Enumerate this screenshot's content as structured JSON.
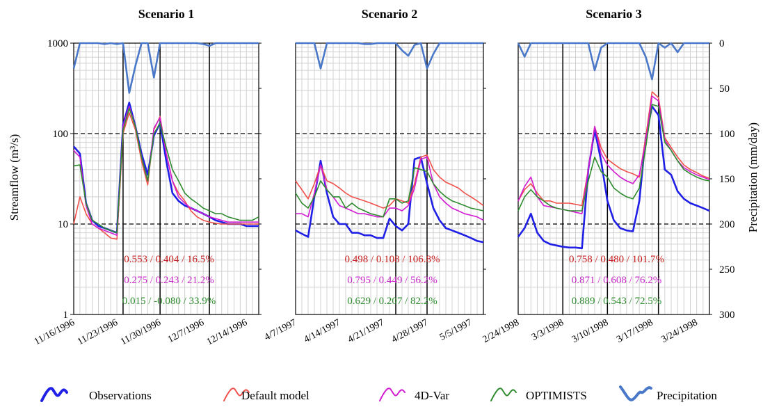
{
  "y_left_label": "Streamflow (m³/s)",
  "y_right_label": "Precipitation (mm/day)",
  "y_left_ticks": [
    "1",
    "10",
    "100",
    "1000"
  ],
  "y_right_ticks": [
    "0",
    "50",
    "100",
    "150",
    "200",
    "250",
    "300"
  ],
  "legend": [
    {
      "label": "Observations",
      "color": "#1f1fe6"
    },
    {
      "label": "Default model",
      "color": "#f0504a"
    },
    {
      "label": "4D-Var",
      "color": "#d21ad2"
    },
    {
      "label": "OPTIMISTS",
      "color": "#2e8b2e"
    },
    {
      "label": "Precipitation",
      "color": "#4a78c8"
    }
  ],
  "colors": {
    "observations": "#1f1fe6",
    "default": "#f0504a",
    "var4d": "#d21ad2",
    "optimists": "#2e8b2e",
    "precipitation": "#4a78c8",
    "grid": "#d0d0d0"
  },
  "chart_data": [
    {
      "type": "line",
      "title": "Scenario 1",
      "y_scale": "log",
      "ylim": [
        1,
        1000
      ],
      "y2lim": [
        0,
        300
      ],
      "y2_inverted": true,
      "x_dates": [
        "11/16/1996",
        "11/17/1996",
        "11/18/1996",
        "11/19/1996",
        "11/20/1996",
        "11/21/1996",
        "11/22/1996",
        "11/23/1996",
        "11/24/1996",
        "11/25/1996",
        "11/26/1996",
        "11/27/1996",
        "11/28/1996",
        "11/29/1996",
        "11/30/1996",
        "12/1/1996",
        "12/2/1996",
        "12/3/1996",
        "12/4/1996",
        "12/5/1996",
        "12/6/1996",
        "12/7/1996",
        "12/8/1996",
        "12/9/1996",
        "12/10/1996",
        "12/11/1996",
        "12/12/1996",
        "12/13/1996",
        "12/14/1996",
        "12/15/1996",
        "12/16/1996"
      ],
      "x_tick_labels": [
        "11/16/1996",
        "11/23/1996",
        "11/30/1996",
        "12/7/1996",
        "12/14/1996"
      ],
      "x_tick_dates": [
        "11/16/1996",
        "11/23/1996",
        "11/30/1996",
        "12/7/1996",
        "12/14/1996"
      ],
      "assimilation_dates": [
        "11/24/1996",
        "11/30/1996",
        "12/8/1996"
      ],
      "series": [
        {
          "key": "observations",
          "values": [
            72,
            60,
            17,
            11,
            9.5,
            9,
            8.5,
            8,
            125,
            220,
            120,
            60,
            35,
            95,
            130,
            50,
            22,
            18,
            16,
            15,
            14,
            13,
            12,
            11,
            10.5,
            10,
            10,
            10,
            9.5,
            9.5,
            9.5
          ]
        },
        {
          "key": "default",
          "values": [
            10,
            20,
            13,
            10,
            9,
            8,
            7,
            6.8,
            100,
            170,
            110,
            50,
            27,
            110,
            155,
            60,
            30,
            22,
            18,
            14,
            12,
            11,
            10.5,
            10.2,
            10,
            10,
            10,
            10,
            10,
            10,
            10
          ]
        },
        {
          "key": "var4d",
          "values": [
            65,
            55,
            16,
            10,
            9,
            8.5,
            8,
            7.5,
            120,
            200,
            120,
            55,
            30,
            115,
            150,
            60,
            30,
            20,
            17,
            15,
            14,
            13,
            12,
            11.5,
            11,
            10.5,
            10.5,
            10.5,
            10.5,
            10.5,
            10.5
          ]
        },
        {
          "key": "optimists",
          "values": [
            44,
            45,
            17,
            11,
            10,
            9,
            8.5,
            8,
            110,
            190,
            120,
            55,
            30,
            100,
            130,
            70,
            40,
            30,
            22,
            19,
            17,
            15,
            14,
            13,
            13,
            12,
            11.5,
            11,
            11,
            11,
            12
          ]
        },
        {
          "key": "precipitation",
          "axis": "right",
          "values": [
            28,
            0,
            0,
            0,
            0,
            1,
            0,
            1,
            0,
            55,
            25,
            0,
            0,
            38,
            0,
            0,
            0,
            0,
            0,
            0,
            0,
            1,
            3,
            0,
            0,
            0,
            0,
            0,
            0,
            0,
            0
          ]
        }
      ],
      "metrics": [
        {
          "text": "0.553 / 0.404 / 16.5%",
          "color": "#c81e1e"
        },
        {
          "text": "0.275 / 0.243 / 21.2%",
          "color": "#c828c8"
        },
        {
          "text": "0.015 / -0.080 / 33.9%",
          "color": "#2e8b2e"
        }
      ]
    },
    {
      "type": "line",
      "title": "Scenario 2",
      "y_scale": "log",
      "ylim": [
        1,
        1000
      ],
      "y2lim": [
        0,
        300
      ],
      "y2_inverted": true,
      "x_dates": [
        "4/7/1997",
        "4/8/1997",
        "4/9/1997",
        "4/10/1997",
        "4/11/1997",
        "4/12/1997",
        "4/13/1997",
        "4/14/1997",
        "4/15/1997",
        "4/16/1997",
        "4/17/1997",
        "4/18/1997",
        "4/19/1997",
        "4/20/1997",
        "4/21/1997",
        "4/22/1997",
        "4/23/1997",
        "4/24/1997",
        "4/25/1997",
        "4/26/1997",
        "4/27/1997",
        "4/28/1997",
        "4/29/1997",
        "4/30/1997",
        "5/1/1997",
        "5/2/1997",
        "5/3/1997",
        "5/4/1997",
        "5/5/1997",
        "5/6/1997",
        "5/7/1997"
      ],
      "x_tick_labels": [
        "4/7/1997",
        "4/14/1997",
        "4/21/1997",
        "4/28/1997",
        "5/5/1997"
      ],
      "x_tick_dates": [
        "4/7/1997",
        "4/14/1997",
        "4/21/1997",
        "4/28/1997",
        "5/5/1997"
      ],
      "assimilation_dates": [
        "4/23/1997",
        "4/28/1997"
      ],
      "series": [
        {
          "key": "observations",
          "values": [
            8.5,
            7.8,
            7.2,
            20,
            50,
            22,
            12,
            10,
            10,
            8,
            8,
            7.5,
            7.5,
            7,
            7,
            11.5,
            9.5,
            8.5,
            10,
            52,
            55,
            28,
            15,
            11,
            9,
            8.5,
            8,
            7.5,
            7,
            6.5,
            6.3
          ]
        },
        {
          "key": "default",
          "values": [
            30,
            24,
            19,
            28,
            45,
            30,
            28,
            25,
            22,
            20,
            19,
            18,
            17,
            16,
            15,
            16,
            19,
            18,
            17,
            28,
            55,
            58,
            40,
            33,
            29,
            27,
            25,
            22,
            20,
            18,
            16
          ]
        },
        {
          "key": "var4d",
          "values": [
            13,
            13,
            12,
            22,
            45,
            24,
            20,
            16,
            15,
            14,
            13,
            13,
            12.5,
            12,
            12,
            15,
            15,
            14,
            16,
            25,
            52,
            55,
            28,
            20,
            17,
            15,
            14,
            13,
            12.5,
            12,
            11
          ]
        },
        {
          "key": "optimists",
          "values": [
            22,
            17,
            15,
            20,
            30,
            24,
            20,
            20,
            15,
            17,
            15,
            14,
            13,
            12.5,
            12,
            19,
            19,
            17,
            18,
            42,
            40,
            38,
            28,
            23,
            20,
            18,
            17,
            16,
            15,
            14.5,
            14
          ]
        },
        {
          "key": "precipitation",
          "axis": "right",
          "values": [
            0,
            0,
            0,
            0,
            28,
            0,
            0,
            0,
            0,
            0,
            0,
            1,
            1,
            0,
            0,
            0,
            0,
            8,
            14,
            2,
            0,
            28,
            12,
            0,
            0,
            0,
            0,
            0,
            0,
            0,
            0
          ]
        }
      ],
      "metrics": [
        {
          "text": "0.498 / 0.108 / 106.8%",
          "color": "#c81e1e"
        },
        {
          "text": "0.795 / 0.449 / 56.2%",
          "color": "#c828c8"
        },
        {
          "text": "0.629 / 0.207 / 82.2%",
          "color": "#2e8b2e"
        }
      ]
    },
    {
      "type": "line",
      "title": "Scenario 3",
      "y_scale": "log",
      "ylim": [
        1,
        1000
      ],
      "y2lim": [
        0,
        300
      ],
      "y2_inverted": true,
      "x_dates": [
        "2/24/1998",
        "2/25/1998",
        "2/26/1998",
        "2/27/1998",
        "2/28/1998",
        "3/1/1998",
        "3/2/1998",
        "3/3/1998",
        "3/4/1998",
        "3/5/1998",
        "3/6/1998",
        "3/7/1998",
        "3/8/1998",
        "3/9/1998",
        "3/10/1998",
        "3/11/1998",
        "3/12/1998",
        "3/13/1998",
        "3/14/1998",
        "3/15/1998",
        "3/16/1998",
        "3/17/1998",
        "3/18/1998",
        "3/19/1998",
        "3/20/1998",
        "3/21/1998",
        "3/22/1998",
        "3/23/1998",
        "3/24/1998",
        "3/25/1998",
        "3/26/1998"
      ],
      "x_tick_labels": [
        "2/24/1998",
        "3/3/1998",
        "3/10/1998",
        "3/17/1998",
        "3/24/1998"
      ],
      "x_tick_dates": [
        "2/24/1998",
        "3/3/1998",
        "3/10/1998",
        "3/17/1998",
        "3/24/1998"
      ],
      "assimilation_dates": [
        "3/3/1998",
        "3/10/1998",
        "3/18/1998"
      ],
      "series": [
        {
          "key": "observations",
          "values": [
            7.2,
            9,
            13,
            8,
            6.5,
            6,
            5.8,
            5.6,
            5.5,
            5.5,
            5.4,
            40,
            110,
            50,
            18,
            11,
            9,
            8.5,
            8.3,
            18,
            90,
            200,
            160,
            40,
            35,
            23,
            19,
            17,
            16,
            15,
            14
          ]
        },
        {
          "key": "default",
          "values": [
            18,
            24,
            28,
            22,
            18,
            18,
            17,
            17,
            17,
            16.5,
            16,
            40,
            120,
            70,
            52,
            46,
            41,
            38,
            36,
            33,
            90,
            290,
            250,
            90,
            70,
            55,
            45,
            40,
            37,
            34,
            32
          ]
        },
        {
          "key": "var4d",
          "values": [
            18,
            26,
            33,
            20,
            16,
            15.5,
            15,
            14.5,
            14,
            13.5,
            13,
            40,
            120,
            60,
            45,
            38,
            33,
            30,
            28,
            35,
            80,
            260,
            230,
            85,
            65,
            50,
            42,
            38,
            35,
            33,
            31
          ]
        },
        {
          "key": "optimists",
          "values": [
            14,
            20,
            24,
            20,
            18,
            16,
            15,
            14.5,
            14,
            14,
            14,
            30,
            55,
            38,
            33,
            25,
            22,
            20,
            19,
            25,
            70,
            210,
            200,
            80,
            65,
            50,
            40,
            36,
            33,
            31,
            30
          ]
        },
        {
          "key": "precipitation",
          "axis": "right",
          "values": [
            0,
            15,
            0,
            0,
            0,
            0,
            0,
            0,
            0,
            0,
            0,
            0,
            30,
            5,
            0,
            0,
            0,
            0,
            0,
            0,
            15,
            40,
            0,
            5,
            0,
            10,
            0,
            0,
            0,
            0,
            0
          ]
        }
      ],
      "metrics": [
        {
          "text": "0.758 / 0.480 / 101.7%",
          "color": "#c81e1e"
        },
        {
          "text": "0.871 / 0.608 / 76.2%",
          "color": "#c828c8"
        },
        {
          "text": "0.889 / 0.543 / 72.5%",
          "color": "#2e8b2e"
        }
      ]
    }
  ]
}
